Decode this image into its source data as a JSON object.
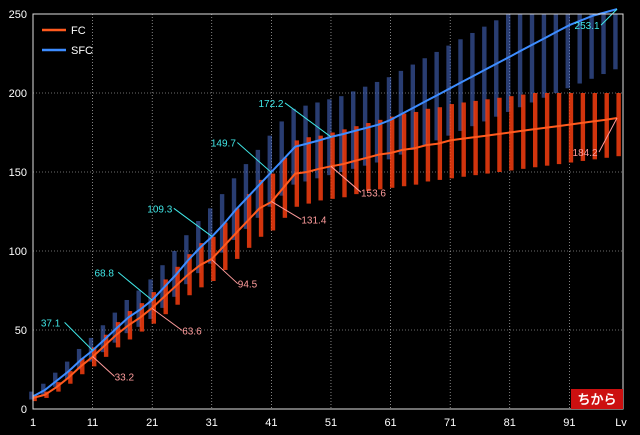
{
  "chart_data": {
    "type": "line",
    "badge": "ちから",
    "xlabel": "Lv",
    "xlim": [
      1,
      100
    ],
    "ylim": [
      0,
      250
    ],
    "x_ticks": [
      1,
      11,
      21,
      31,
      41,
      51,
      61,
      71,
      81,
      91
    ],
    "y_ticks": [
      0,
      50,
      100,
      150,
      200,
      250
    ],
    "grid": true,
    "legend_position": "top-left",
    "colors": {
      "FC": "#ff5a1e",
      "SFC": "#3d8cff",
      "fc_annotation": "#ff9c9c",
      "sfc_annotation": "#40e8e8",
      "badge_bg": "#cc1010"
    },
    "series": [
      {
        "name": "FC",
        "x": [
          1,
          3,
          5,
          7,
          9,
          11,
          13,
          15,
          17,
          19,
          21,
          23,
          25,
          27,
          29,
          31,
          33,
          35,
          37,
          39,
          41,
          43,
          45,
          47,
          49,
          51,
          53,
          55,
          57,
          59,
          61,
          63,
          65,
          67,
          69,
          71,
          73,
          75,
          77,
          79,
          81,
          83,
          85,
          87,
          89,
          91,
          93,
          95,
          97,
          99
        ],
        "values": [
          7,
          9,
          14,
          20,
          27,
          33,
          40,
          47,
          53,
          58,
          64,
          71,
          78,
          85,
          91,
          95,
          103,
          111,
          119,
          127,
          131,
          140,
          149,
          150,
          152,
          153.6,
          155,
          157,
          159,
          161,
          162,
          164,
          165,
          167,
          168,
          170,
          171,
          172,
          173,
          174,
          175,
          176,
          177,
          178,
          179,
          180,
          181,
          182,
          183,
          184.2
        ],
        "ranges": [
          [
            5,
            9
          ],
          [
            7,
            11
          ],
          [
            11,
            17
          ],
          [
            16,
            24
          ],
          [
            22,
            32
          ],
          [
            27,
            39
          ],
          [
            33,
            47
          ],
          [
            39,
            55
          ],
          [
            44,
            62
          ],
          [
            49,
            67
          ],
          [
            54,
            74
          ],
          [
            60,
            82
          ],
          [
            66,
            90
          ],
          [
            72,
            98
          ],
          [
            77,
            105
          ],
          [
            81,
            109
          ],
          [
            88,
            118
          ],
          [
            95,
            127
          ],
          [
            102,
            136
          ],
          [
            109,
            145
          ],
          [
            113,
            149
          ],
          [
            121,
            159
          ],
          [
            128,
            170
          ],
          [
            130,
            172
          ],
          [
            132,
            173
          ],
          [
            133,
            175
          ],
          [
            134,
            177
          ],
          [
            136,
            179
          ],
          [
            138,
            181
          ],
          [
            139,
            183
          ],
          [
            140,
            185
          ],
          [
            141,
            187
          ],
          [
            142,
            188
          ],
          [
            144,
            190
          ],
          [
            145,
            191
          ],
          [
            146,
            193
          ],
          [
            147,
            194
          ],
          [
            148,
            195
          ],
          [
            149,
            196
          ],
          [
            150,
            197
          ],
          [
            151,
            198
          ],
          [
            152,
            199
          ],
          [
            153,
            200
          ],
          [
            154,
            200
          ],
          [
            155,
            200
          ],
          [
            156,
            200
          ],
          [
            157,
            200
          ],
          [
            158,
            200
          ],
          [
            159,
            200
          ],
          [
            160,
            200
          ]
        ],
        "annotations": [
          {
            "x": 11,
            "value": 33.2,
            "label": "33.2"
          },
          {
            "x": 21,
            "value": 63.6,
            "label": "63.6"
          },
          {
            "x": 31,
            "value": 94.5,
            "label": "94.5"
          },
          {
            "x": 41,
            "value": 131.4,
            "label": "131.4"
          },
          {
            "x": 51,
            "value": 153.6,
            "label": "153.6"
          },
          {
            "x": 99,
            "value": 184.2,
            "label": "184.2"
          }
        ]
      },
      {
        "name": "SFC",
        "x": [
          1,
          3,
          5,
          7,
          9,
          11,
          13,
          15,
          17,
          19,
          21,
          23,
          25,
          27,
          29,
          31,
          33,
          35,
          37,
          39,
          41,
          43,
          45,
          47,
          49,
          51,
          53,
          55,
          57,
          59,
          61,
          63,
          65,
          67,
          69,
          71,
          73,
          75,
          77,
          79,
          81,
          83,
          85,
          87,
          89,
          91,
          93,
          95,
          97,
          99
        ],
        "values": [
          8,
          12,
          18,
          24,
          31,
          37,
          44,
          51,
          58,
          63,
          69,
          77,
          85,
          94,
          102,
          109,
          117,
          126,
          134,
          142,
          150,
          158,
          166,
          168,
          170,
          172.2,
          174,
          176,
          178,
          180,
          183,
          187,
          191,
          195,
          199,
          203,
          207,
          211,
          215,
          219,
          223,
          227,
          231,
          235,
          239,
          243,
          246,
          249,
          251,
          253.1
        ],
        "ranges": [
          [
            6,
            11
          ],
          [
            9,
            16
          ],
          [
            14,
            23
          ],
          [
            19,
            30
          ],
          [
            25,
            38
          ],
          [
            30,
            45
          ],
          [
            36,
            53
          ],
          [
            42,
            61
          ],
          [
            48,
            69
          ],
          [
            52,
            75
          ],
          [
            57,
            82
          ],
          [
            64,
            91
          ],
          [
            71,
            100
          ],
          [
            79,
            110
          ],
          [
            86,
            119
          ],
          [
            92,
            127
          ],
          [
            99,
            136
          ],
          [
            107,
            146
          ],
          [
            114,
            155
          ],
          [
            121,
            164
          ],
          [
            128,
            173
          ],
          [
            135,
            182
          ],
          [
            142,
            190
          ],
          [
            144,
            192
          ],
          [
            146,
            194
          ],
          [
            148,
            196
          ],
          [
            150,
            198
          ],
          [
            152,
            201
          ],
          [
            154,
            204
          ],
          [
            156,
            207
          ],
          [
            158,
            210
          ],
          [
            161,
            214
          ],
          [
            164,
            218
          ],
          [
            167,
            222
          ],
          [
            170,
            226
          ],
          [
            173,
            230
          ],
          [
            176,
            234
          ],
          [
            179,
            238
          ],
          [
            182,
            242
          ],
          [
            185,
            246
          ],
          [
            188,
            250
          ],
          [
            191,
            253
          ],
          [
            194,
            256
          ],
          [
            197,
            259
          ],
          [
            200,
            262
          ],
          [
            203,
            265
          ],
          [
            206,
            268
          ],
          [
            209,
            271
          ],
          [
            212,
            274
          ],
          [
            215,
            277
          ]
        ],
        "annotations": [
          {
            "x": 11,
            "value": 37.1,
            "label": "37.1"
          },
          {
            "x": 21,
            "value": 68.8,
            "label": "68.8"
          },
          {
            "x": 31,
            "value": 109.3,
            "label": "109.3"
          },
          {
            "x": 41,
            "value": 149.7,
            "label": "149.7"
          },
          {
            "x": 51,
            "value": 172.2,
            "label": "172.2"
          },
          {
            "x": 99,
            "value": 253.1,
            "label": "253.1"
          }
        ]
      }
    ]
  }
}
